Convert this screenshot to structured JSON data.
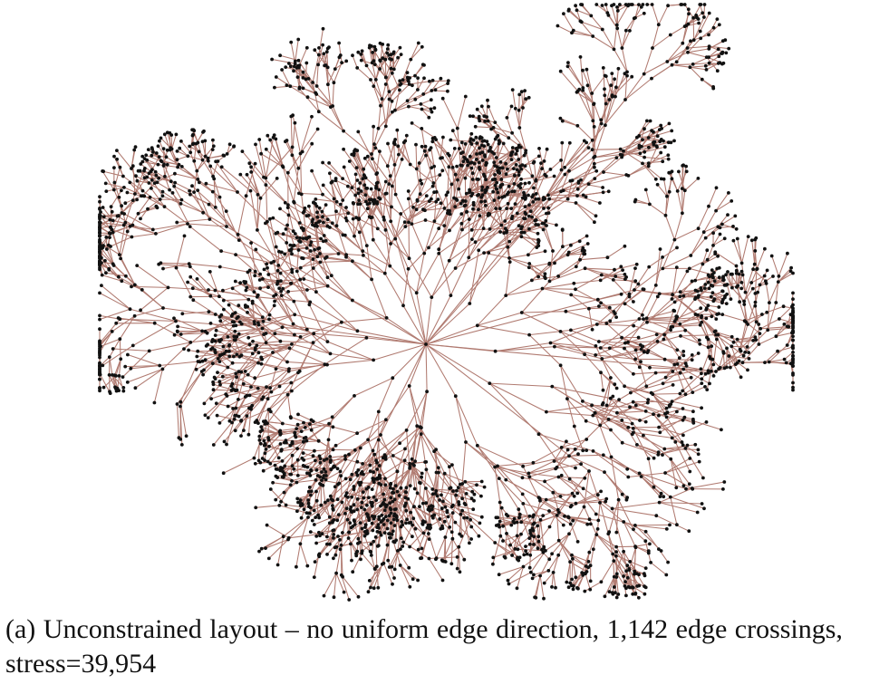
{
  "figure": {
    "caption_label": "(a)",
    "caption_text": "Unconstrained layout – no uniform edge direction, 1,142 edge crossings, stress=39,954",
    "edge_color": "#b07a70",
    "node_color": "#111111",
    "background": "#ffffff"
  }
}
